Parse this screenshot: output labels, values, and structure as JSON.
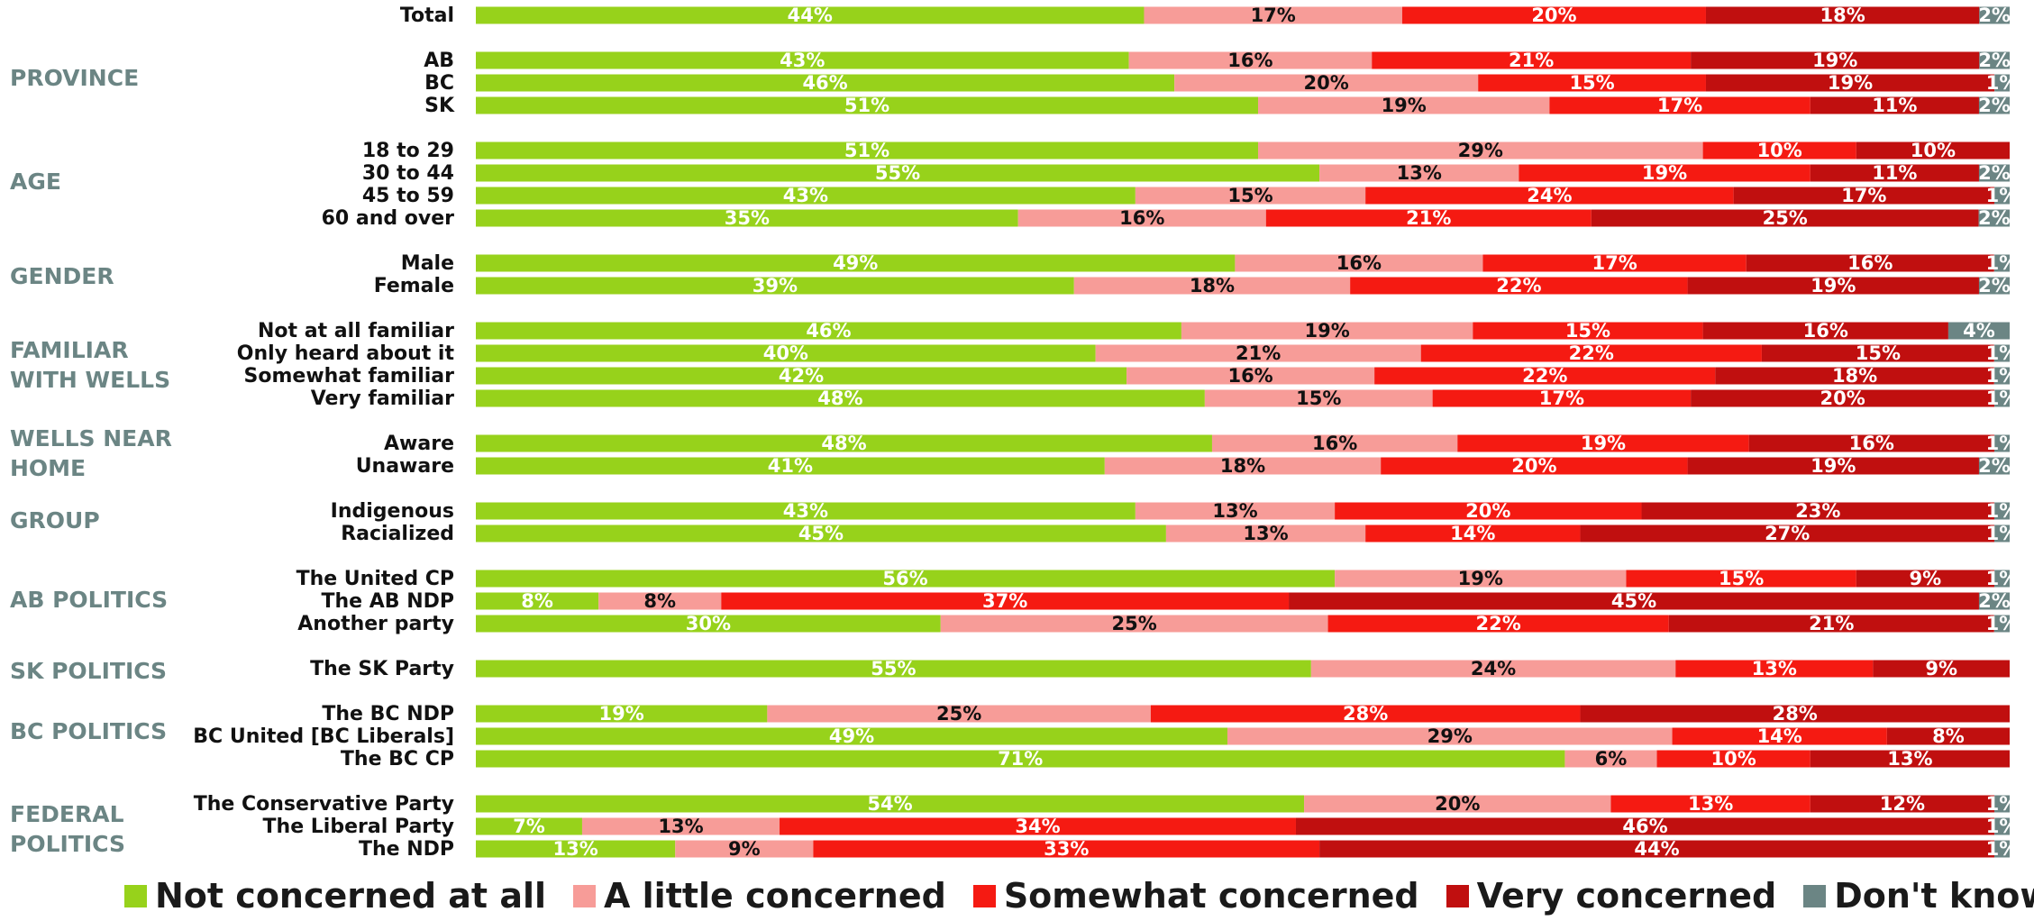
{
  "chart_data": {
    "type": "bar",
    "orientation": "horizontal",
    "stacked": true,
    "legend_position": "bottom",
    "colors": {
      "not_concerned": "#97d21b",
      "a_little": "#f79c98",
      "somewhat": "#f51a12",
      "very": "#c00f0f",
      "dont_know": "#6b8584",
      "group_label": "#6b8584"
    },
    "series": [
      {
        "key": "not_concerned",
        "name": "Not concerned at all"
      },
      {
        "key": "a_little",
        "name": "A little concerned"
      },
      {
        "key": "somewhat",
        "name": "Somewhat concerned"
      },
      {
        "key": "very",
        "name": "Very concerned"
      },
      {
        "key": "dont_know",
        "name": "Don't know"
      }
    ],
    "groups": [
      {
        "label": "",
        "rows": [
          {
            "label": "Total",
            "values": [
              44,
              17,
              20,
              18,
              2
            ],
            "labels": [
              "44%",
              "17%",
              "20%",
              "18%",
              "2%"
            ]
          }
        ]
      },
      {
        "label": "PROVINCE",
        "rows": [
          {
            "label": "AB",
            "values": [
              43,
              16,
              21,
              19,
              2
            ],
            "labels": [
              "43%",
              "16%",
              "21%",
              "19%",
              "2%"
            ]
          },
          {
            "label": "BC",
            "values": [
              46,
              20,
              15,
              19,
              1
            ],
            "labels": [
              "46%",
              "20%",
              "15%",
              "19%",
              "1%"
            ]
          },
          {
            "label": "SK",
            "values": [
              51,
              19,
              17,
              11,
              2
            ],
            "labels": [
              "51%",
              "19%",
              "17%",
              "11%",
              "2%"
            ]
          }
        ]
      },
      {
        "label": "AGE",
        "rows": [
          {
            "label": "18 to 29",
            "values": [
              51,
              29,
              10,
              10,
              0
            ],
            "labels": [
              "51%",
              "29%",
              "10%",
              "10%",
              ""
            ]
          },
          {
            "label": "30 to 44",
            "values": [
              55,
              13,
              19,
              11,
              2
            ],
            "labels": [
              "55%",
              "13%",
              "19%",
              "11%",
              "2%"
            ]
          },
          {
            "label": "45 to 59",
            "values": [
              43,
              15,
              24,
              17,
              1
            ],
            "labels": [
              "43%",
              "15%",
              "24%",
              "17%",
              "1%"
            ]
          },
          {
            "label": "60 and over",
            "values": [
              35,
              16,
              21,
              25,
              2
            ],
            "labels": [
              "35%",
              "16%",
              "21%",
              "25%",
              "2%"
            ]
          }
        ]
      },
      {
        "label": "GENDER",
        "rows": [
          {
            "label": "Male",
            "values": [
              49,
              16,
              17,
              16,
              1
            ],
            "labels": [
              "49%",
              "16%",
              "17%",
              "16%",
              "1%"
            ]
          },
          {
            "label": "Female",
            "values": [
              39,
              18,
              22,
              19,
              2
            ],
            "labels": [
              "39%",
              "18%",
              "22%",
              "19%",
              "2%"
            ]
          }
        ]
      },
      {
        "label": "FAMILIAR WITH WELLS",
        "rows": [
          {
            "label": "Not at all familiar",
            "values": [
              46,
              19,
              15,
              16,
              4
            ],
            "labels": [
              "46%",
              "19%",
              "15%",
              "16%",
              "4%"
            ]
          },
          {
            "label": "Only heard about it",
            "values": [
              40,
              21,
              22,
              15,
              1
            ],
            "labels": [
              "40%",
              "21%",
              "22%",
              "15%",
              "1%"
            ]
          },
          {
            "label": "Somewhat familiar",
            "values": [
              42,
              16,
              22,
              18,
              1
            ],
            "labels": [
              "42%",
              "16%",
              "22%",
              "18%",
              "1%"
            ]
          },
          {
            "label": "Very familiar",
            "values": [
              48,
              15,
              17,
              20,
              1
            ],
            "labels": [
              "48%",
              "15%",
              "17%",
              "20%",
              "1%"
            ]
          }
        ]
      },
      {
        "label": "WELLS NEAR HOME",
        "rows": [
          {
            "label": "Aware",
            "values": [
              48,
              16,
              19,
              16,
              1
            ],
            "labels": [
              "48%",
              "16%",
              "19%",
              "16%",
              "1%"
            ]
          },
          {
            "label": "Unaware",
            "values": [
              41,
              18,
              20,
              19,
              2
            ],
            "labels": [
              "41%",
              "18%",
              "20%",
              "19%",
              "2%"
            ]
          }
        ]
      },
      {
        "label": "GROUP",
        "rows": [
          {
            "label": "Indigenous",
            "values": [
              43,
              13,
              20,
              23,
              1
            ],
            "labels": [
              "43%",
              "13%",
              "20%",
              "23%",
              "1%"
            ]
          },
          {
            "label": "Racialized",
            "values": [
              45,
              13,
              14,
              27,
              1
            ],
            "labels": [
              "45%",
              "13%",
              "14%",
              "27%",
              "1%"
            ]
          }
        ]
      },
      {
        "label": "AB POLITICS",
        "rows": [
          {
            "label": "The United CP",
            "values": [
              56,
              19,
              15,
              9,
              1
            ],
            "labels": [
              "56%",
              "19%",
              "15%",
              "9%",
              "1%"
            ]
          },
          {
            "label": "The AB NDP",
            "values": [
              8,
              8,
              37,
              45,
              2
            ],
            "labels": [
              "8%",
              "8%",
              "37%",
              "45%",
              "2%"
            ]
          },
          {
            "label": "Another party",
            "values": [
              30,
              25,
              22,
              21,
              1
            ],
            "labels": [
              "30%",
              "25%",
              "22%",
              "21%",
              "1%"
            ]
          }
        ]
      },
      {
        "label": "SK POLITICS",
        "rows": [
          {
            "label": "The SK Party",
            "values": [
              55,
              24,
              13,
              9,
              0
            ],
            "labels": [
              "55%",
              "24%",
              "13%",
              "9%",
              ""
            ]
          }
        ]
      },
      {
        "label": "BC POLITICS",
        "rows": [
          {
            "label": "The BC NDP",
            "values": [
              19,
              25,
              28,
              28,
              0
            ],
            "labels": [
              "19%",
              "25%",
              "28%",
              "28%",
              ""
            ]
          },
          {
            "label": "BC United [BC Liberals]",
            "values": [
              49,
              29,
              14,
              8,
              0
            ],
            "labels": [
              "49%",
              "29%",
              "14%",
              "8%",
              ""
            ]
          },
          {
            "label": "The BC CP",
            "values": [
              71,
              6,
              10,
              13,
              0
            ],
            "labels": [
              "71%",
              "6%",
              "10%",
              "13%",
              ""
            ]
          }
        ]
      },
      {
        "label": "FEDERAL POLITICS",
        "rows": [
          {
            "label": "The Conservative Party",
            "values": [
              54,
              20,
              13,
              12,
              1
            ],
            "labels": [
              "54%",
              "20%",
              "13%",
              "12%",
              "1%"
            ]
          },
          {
            "label": "The Liberal Party",
            "values": [
              7,
              13,
              34,
              46,
              1
            ],
            "labels": [
              "7%",
              "13%",
              "34%",
              "46%",
              "1%"
            ]
          },
          {
            "label": "The NDP",
            "values": [
              13,
              9,
              33,
              44,
              1
            ],
            "labels": [
              "13%",
              "9%",
              "33%",
              "44%",
              "1%"
            ]
          }
        ]
      }
    ]
  }
}
